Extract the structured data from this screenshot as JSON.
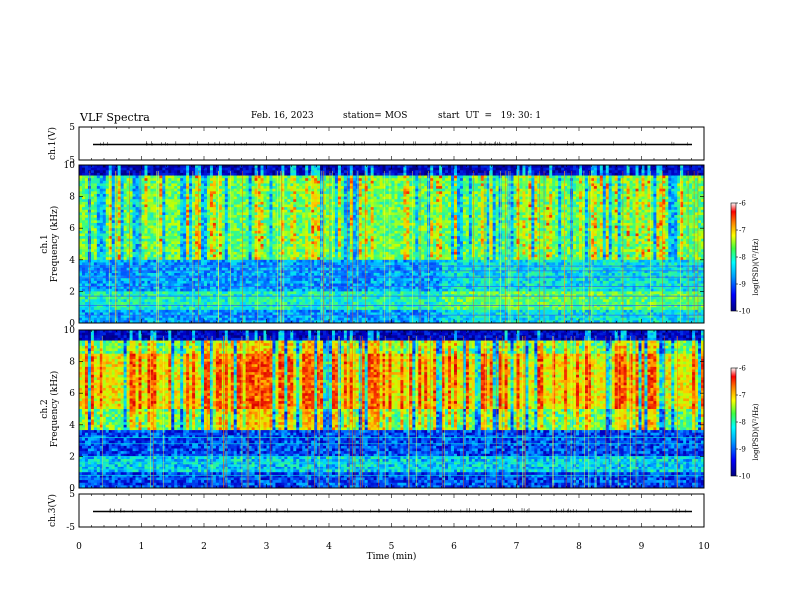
{
  "header": {
    "title": "VLF Spectra",
    "date": "Feb. 16, 2023",
    "station": "station= MOS",
    "start": "start  UT  =   19: 30: 1"
  },
  "colors": {
    "colormap": [
      "#000080",
      "#0000ff",
      "#0080ff",
      "#00ffff",
      "#80ff80",
      "#ffff00",
      "#ff8000",
      "#ff0000",
      "#800000"
    ],
    "frame": "#000000"
  },
  "chart_data": [
    {
      "type": "line",
      "ylabel": "ch.1(V)",
      "ylim": [
        -5,
        5
      ],
      "yticks": [
        "5",
        "-5"
      ],
      "trace_level": 0,
      "x_range": [
        0,
        10
      ]
    },
    {
      "type": "heatmap",
      "ylabel_line1": "ch.1",
      "ylabel_line2": "Frequency (kHz)",
      "ylim": [
        0,
        10
      ],
      "yticks": [
        "0",
        "2",
        "4",
        "6",
        "8",
        "10"
      ],
      "xlim": [
        0,
        10
      ],
      "colorbar": {
        "label": "log(PSD)(V²/Hz)",
        "ticks": [
          "-6",
          "-7",
          "-8",
          "-9",
          "-10"
        ],
        "range": [
          -10,
          -6
        ]
      },
      "description_levels": {
        "low_band_kHz": [
          0,
          4
        ],
        "mid_band_kHz": [
          4,
          9.3
        ],
        "top_band_kHz": [
          9.3,
          10
        ]
      }
    },
    {
      "type": "heatmap",
      "ylabel_line1": "ch.2",
      "ylabel_line2": "Frequency (kHz)",
      "ylim": [
        0,
        10
      ],
      "yticks": [
        "0",
        "2",
        "4",
        "6",
        "8",
        "10"
      ],
      "xlim": [
        0,
        10
      ],
      "colorbar": {
        "label": "log(PSD)(V²/Hz)",
        "ticks": [
          "-6",
          "-7",
          "-8",
          "-9",
          "-10"
        ],
        "range": [
          -10,
          -6
        ]
      }
    },
    {
      "type": "line",
      "ylabel": "ch.3(V)",
      "ylim": [
        -5,
        5
      ],
      "yticks": [
        "5",
        "-5"
      ],
      "trace_level": 0,
      "x_range": [
        0,
        10
      ]
    }
  ],
  "xaxis": {
    "label": "Time  (min)",
    "ticks": [
      "0",
      "1",
      "2",
      "3",
      "4",
      "5",
      "6",
      "7",
      "8",
      "9",
      "10"
    ],
    "xlim": [
      0,
      10
    ]
  }
}
